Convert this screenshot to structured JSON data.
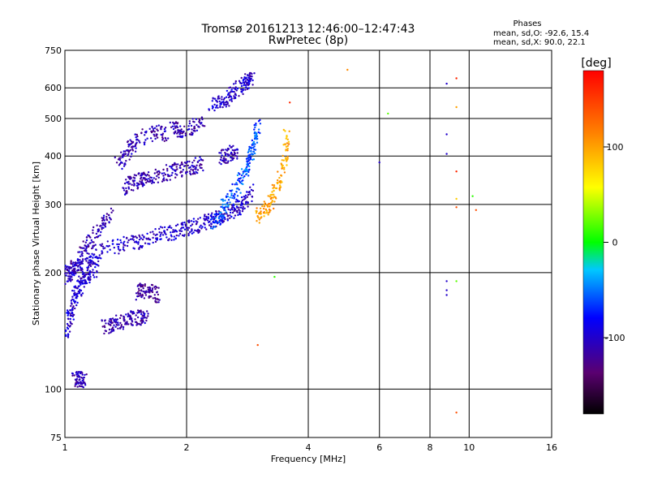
{
  "chart_data": {
    "type": "scatter",
    "title": "Tromsø 20161213 12:46:00–12:47:43",
    "subtitle": "RwPretec (8p)",
    "legend_header": "Phases",
    "stats": [
      "mean, sd,O: -92.6, 15.4",
      "mean, sd,X:  90.0, 22.1"
    ],
    "xlabel": "Frequency [MHz]",
    "ylabel": "Stationary phase Virtual Height [km]",
    "x_scale": "log",
    "y_scale": "log",
    "xlim": [
      1,
      16
    ],
    "ylim": [
      75,
      750
    ],
    "x_ticks": [
      1,
      2,
      4,
      6,
      8,
      10,
      16
    ],
    "y_ticks": [
      75,
      100,
      200,
      300,
      400,
      500,
      600,
      750
    ],
    "grid": true,
    "colorbar": {
      "label": "[deg]",
      "range": [
        -180,
        180
      ],
      "ticks": [
        -100,
        0,
        100
      ],
      "colormap": "rainbow"
    },
    "traces": [
      {
        "x": [
          1.0,
          1.03,
          1.06,
          1.1,
          1.15,
          1.2,
          1.3,
          1.4,
          1.5,
          1.6,
          1.7,
          1.8,
          1.9,
          2.0,
          2.1,
          2.2,
          2.3,
          2.4,
          2.5,
          2.6,
          2.7,
          2.8,
          2.9
        ],
        "y": [
          200,
          202,
          206,
          210,
          216,
          222,
          232,
          236,
          240,
          245,
          250,
          252,
          256,
          260,
          264,
          268,
          272,
          276,
          282,
          288,
          295,
          305,
          330
        ],
        "phase": -100
      },
      {
        "x": [
          2.3,
          2.4,
          2.5,
          2.6,
          2.7,
          2.8,
          2.85,
          2.9,
          2.95,
          3.0
        ],
        "y": [
          270,
          280,
          300,
          318,
          340,
          365,
          385,
          410,
          440,
          480
        ],
        "phase": -60
      },
      {
        "x": [
          1.0,
          1.05,
          1.1,
          1.15,
          1.2,
          1.25,
          1.3
        ],
        "y": [
          185,
          205,
          225,
          240,
          255,
          270,
          285
        ],
        "phase": -110
      },
      {
        "x": [
          1.0,
          1.02,
          1.04,
          1.06,
          1.08,
          1.1,
          1.13,
          1.16,
          1.2
        ],
        "y": [
          135,
          150,
          160,
          172,
          180,
          190,
          195,
          200,
          205
        ],
        "phase": -100
      },
      {
        "x": [
          1.4,
          1.45,
          1.5,
          1.55,
          1.6,
          1.7,
          1.8,
          1.9,
          2.0,
          2.1,
          2.2
        ],
        "y": [
          330,
          338,
          345,
          350,
          352,
          355,
          362,
          368,
          372,
          377,
          382
        ],
        "phase": -110
      },
      {
        "x": [
          1.35,
          1.4,
          1.45,
          1.5,
          1.6,
          1.7,
          1.8
        ],
        "y": [
          380,
          400,
          420,
          440,
          455,
          460,
          455
        ],
        "phase": -110
      },
      {
        "x": [
          1.85,
          1.9,
          2.0,
          2.1,
          2.2
        ],
        "y": [
          470,
          465,
          470,
          478,
          488
        ],
        "phase": -110
      },
      {
        "x": [
          2.3,
          2.4,
          2.5,
          2.6,
          2.7,
          2.8,
          2.85,
          2.9
        ],
        "y": [
          540,
          545,
          560,
          580,
          600,
          618,
          630,
          640
        ],
        "phase": -100
      },
      {
        "x": [
          2.4,
          2.5,
          2.6,
          2.7
        ],
        "y": [
          395,
          400,
          408,
          412
        ],
        "phase": -105
      },
      {
        "x": [
          1.25,
          1.3,
          1.35,
          1.4,
          1.45,
          1.5,
          1.55,
          1.6
        ],
        "y": [
          145,
          146,
          148,
          150,
          152,
          153,
          153,
          152
        ],
        "phase": -110
      },
      {
        "x": [
          1.5,
          1.55,
          1.6,
          1.65,
          1.7
        ],
        "y": [
          178,
          180,
          179,
          177,
          174
        ],
        "phase": -120
      },
      {
        "x": [
          1.05,
          1.08,
          1.1,
          1.12
        ],
        "y": [
          106,
          106,
          106,
          105
        ],
        "phase": -110
      },
      {
        "x": [
          3.0,
          3.1,
          3.2,
          3.3,
          3.4,
          3.5,
          3.55
        ],
        "y": [
          280,
          290,
          300,
          320,
          350,
          400,
          470
        ],
        "phase": 100
      }
    ],
    "scatter_points": [
      {
        "x": 5.0,
        "y": 668,
        "phase": 110
      },
      {
        "x": 6.3,
        "y": 515,
        "phase": 20
      },
      {
        "x": 6.0,
        "y": 385,
        "phase": -100
      },
      {
        "x": 8.8,
        "y": 615,
        "phase": -100
      },
      {
        "x": 8.8,
        "y": 455,
        "phase": -100
      },
      {
        "x": 8.8,
        "y": 405,
        "phase": -100
      },
      {
        "x": 9.3,
        "y": 635,
        "phase": 160
      },
      {
        "x": 9.3,
        "y": 535,
        "phase": 100
      },
      {
        "x": 9.3,
        "y": 365,
        "phase": 160
      },
      {
        "x": 9.3,
        "y": 295,
        "phase": 140
      },
      {
        "x": 9.3,
        "y": 310,
        "phase": 80
      },
      {
        "x": 8.8,
        "y": 190,
        "phase": -100
      },
      {
        "x": 8.8,
        "y": 180,
        "phase": -100
      },
      {
        "x": 8.8,
        "y": 175,
        "phase": -100
      },
      {
        "x": 9.3,
        "y": 190,
        "phase": 20
      },
      {
        "x": 9.3,
        "y": 87,
        "phase": 140
      },
      {
        "x": 10.2,
        "y": 315,
        "phase": 10
      },
      {
        "x": 10.4,
        "y": 290,
        "phase": 140
      },
      {
        "x": 3.6,
        "y": 550,
        "phase": 160
      },
      {
        "x": 3.3,
        "y": 195,
        "phase": 10
      },
      {
        "x": 3.0,
        "y": 130,
        "phase": 140
      }
    ]
  }
}
